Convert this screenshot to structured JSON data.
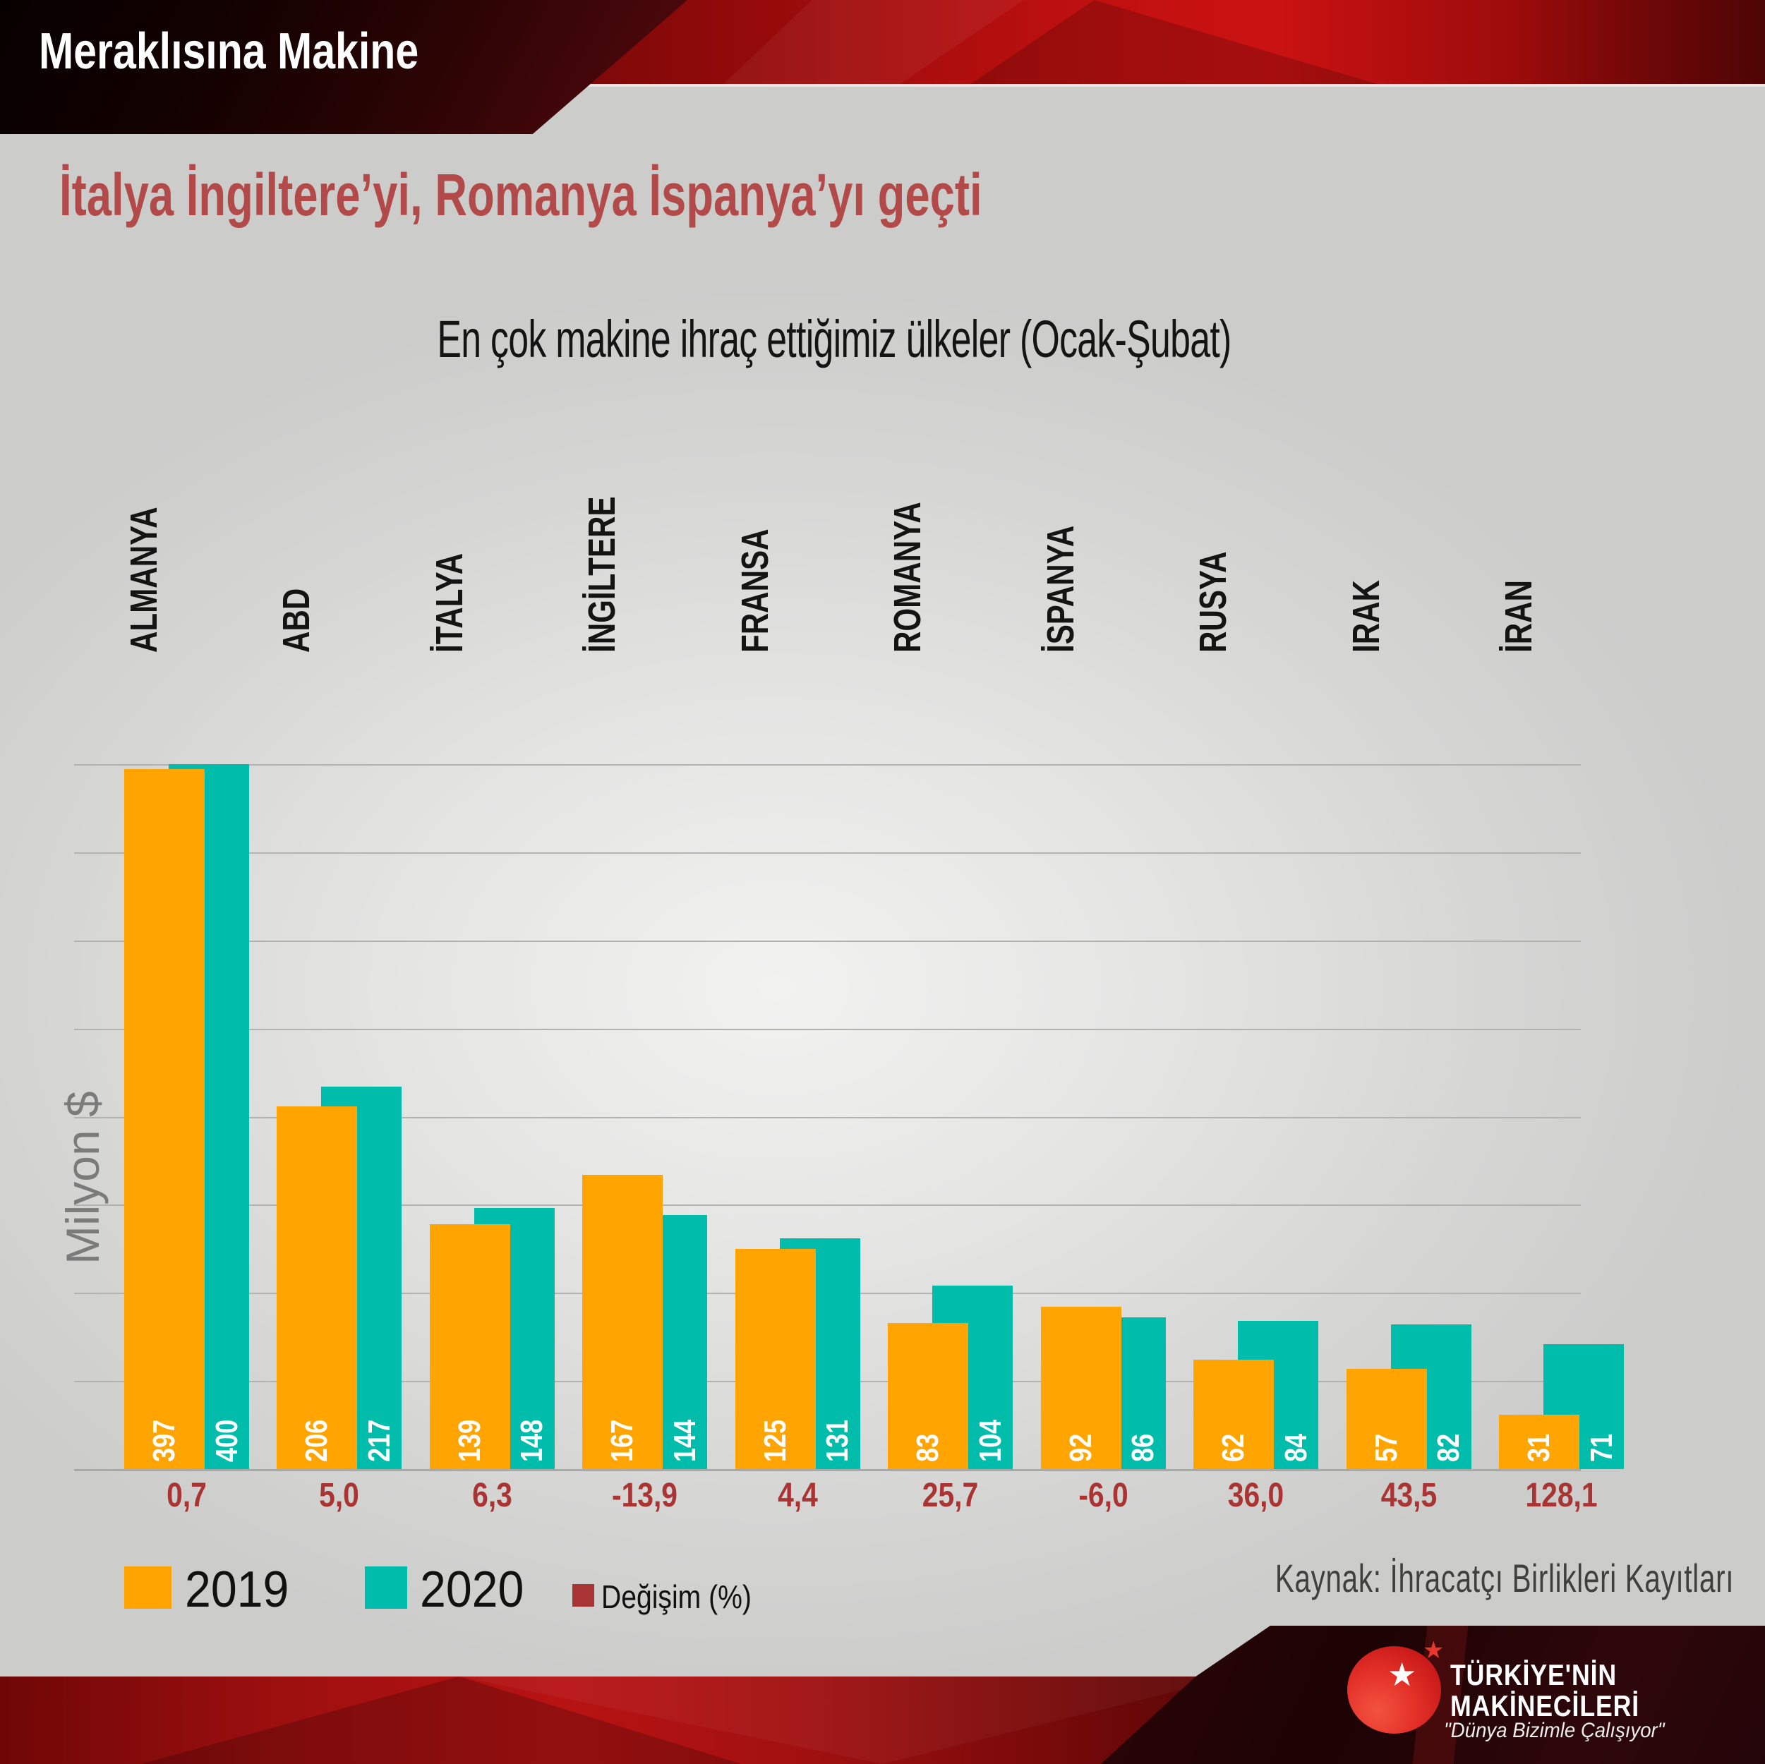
{
  "header": {
    "app_title": "Meraklısına Makine",
    "headline": "İtalya İngiltere’yi, Romanya İspanya’yı geçti"
  },
  "chart_data": {
    "type": "bar",
    "title": "En çok makine ihraç ettiğimiz ülkeler (Ocak-Şubat)",
    "xlabel": "",
    "ylabel": "Milyon $",
    "ylim": [
      0,
      400
    ],
    "grid": true,
    "grid_step": 50,
    "legend_position": "bottom-left",
    "categories": [
      "ALMANYA",
      "ABD",
      "İTALYA",
      "İNGİLTERE",
      "FRANSA",
      "ROMANYA",
      "İSPANYA",
      "RUSYA",
      "IRAK",
      "İRAN"
    ],
    "series": [
      {
        "name": "2019",
        "color": "#FFA400",
        "values": [
          397,
          206,
          139,
          167,
          125,
          83,
          92,
          62,
          57,
          31
        ]
      },
      {
        "name": "2020",
        "color": "#00BCAB",
        "values": [
          400,
          217,
          148,
          144,
          131,
          104,
          86,
          84,
          82,
          71
        ]
      }
    ],
    "annotations": {
      "name": "Değişim (%)",
      "color": "#A93434",
      "values": [
        "0,7",
        "5,0",
        "6,3",
        "-13,9",
        "4,4",
        "25,7",
        "-6,0",
        "36,0",
        "43,5",
        "128,1"
      ]
    }
  },
  "legend": {
    "items": [
      {
        "label": "2019",
        "color": "#FFA400"
      },
      {
        "label": "2020",
        "color": "#00BCAB"
      },
      {
        "label": "Değişim (%)",
        "color": "#A93434"
      }
    ]
  },
  "source": {
    "text": "Kaynak: İhracatçı Birlikleri Kayıtları"
  },
  "brand": {
    "name_line1": "TÜRKİYE'NİN",
    "name_line2": "MAKİNECİLERİ",
    "tagline": "\"Dünya Bizimle Çalışıyor\"",
    "star_icon": "star",
    "accent_color": "#E8382B"
  }
}
